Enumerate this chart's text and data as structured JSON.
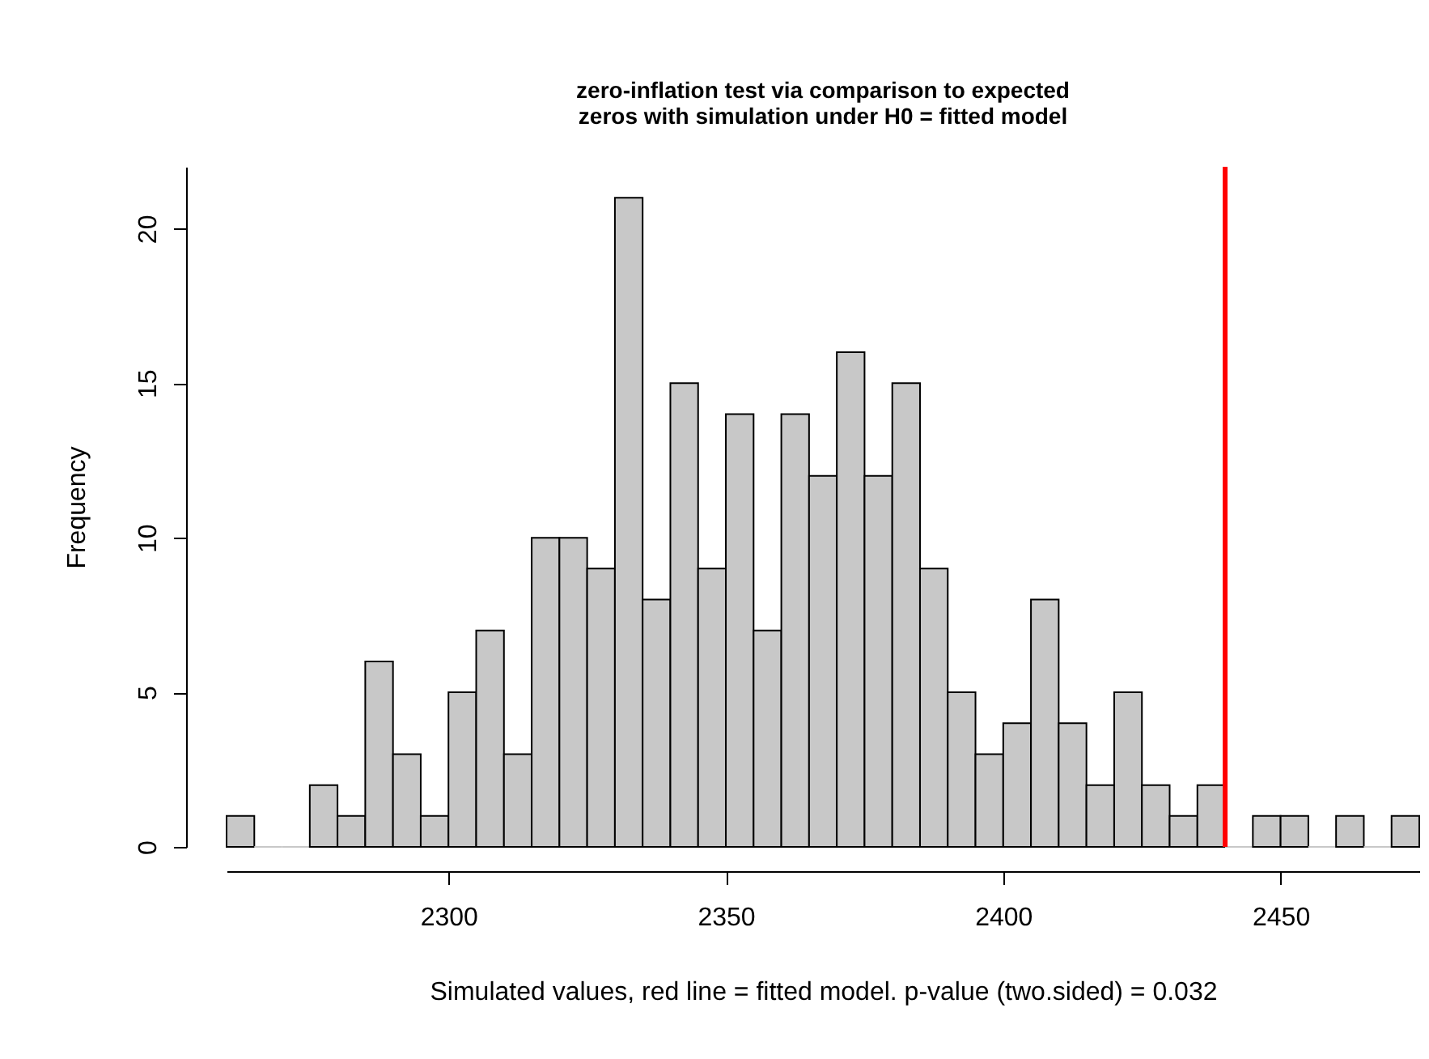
{
  "chart_data": {
    "type": "histogram",
    "title": "zero-inflation test via comparison to expected zeros with simulation under H0 = fitted model",
    "xlabel": "Simulated values, red line = fitted model. p-value (two.sided) = 0.032",
    "ylabel": "Frequency",
    "bins": [
      2260,
      2265,
      2270,
      2275,
      2280,
      2285,
      2290,
      2295,
      2300,
      2305,
      2310,
      2315,
      2320,
      2325,
      2330,
      2335,
      2340,
      2345,
      2350,
      2355,
      2360,
      2365,
      2370,
      2375,
      2380,
      2385,
      2390,
      2395,
      2400,
      2405,
      2410,
      2415,
      2420,
      2425,
      2430,
      2435,
      2440,
      2445,
      2450,
      2455,
      2460,
      2465,
      2470,
      2475
    ],
    "values": [
      1,
      0,
      0,
      2,
      1,
      6,
      3,
      1,
      5,
      7,
      3,
      10,
      10,
      9,
      21,
      8,
      15,
      9,
      14,
      7,
      14,
      12,
      16,
      12,
      15,
      9,
      5,
      3,
      4,
      8,
      4,
      2,
      5,
      2,
      1,
      2,
      0,
      1,
      1,
      0,
      1,
      0,
      1
    ],
    "color": "#c8c8c8",
    "xlim": [
      2260,
      2475
    ],
    "xticks": [
      2300,
      2350,
      2400,
      2450
    ],
    "ylim": [
      0,
      22
    ],
    "yticks": [
      0,
      5,
      10,
      15,
      20
    ],
    "grid": false,
    "ref_lines": [
      {
        "axis": "x",
        "value": 2440,
        "color": "#ff0000"
      }
    ]
  }
}
